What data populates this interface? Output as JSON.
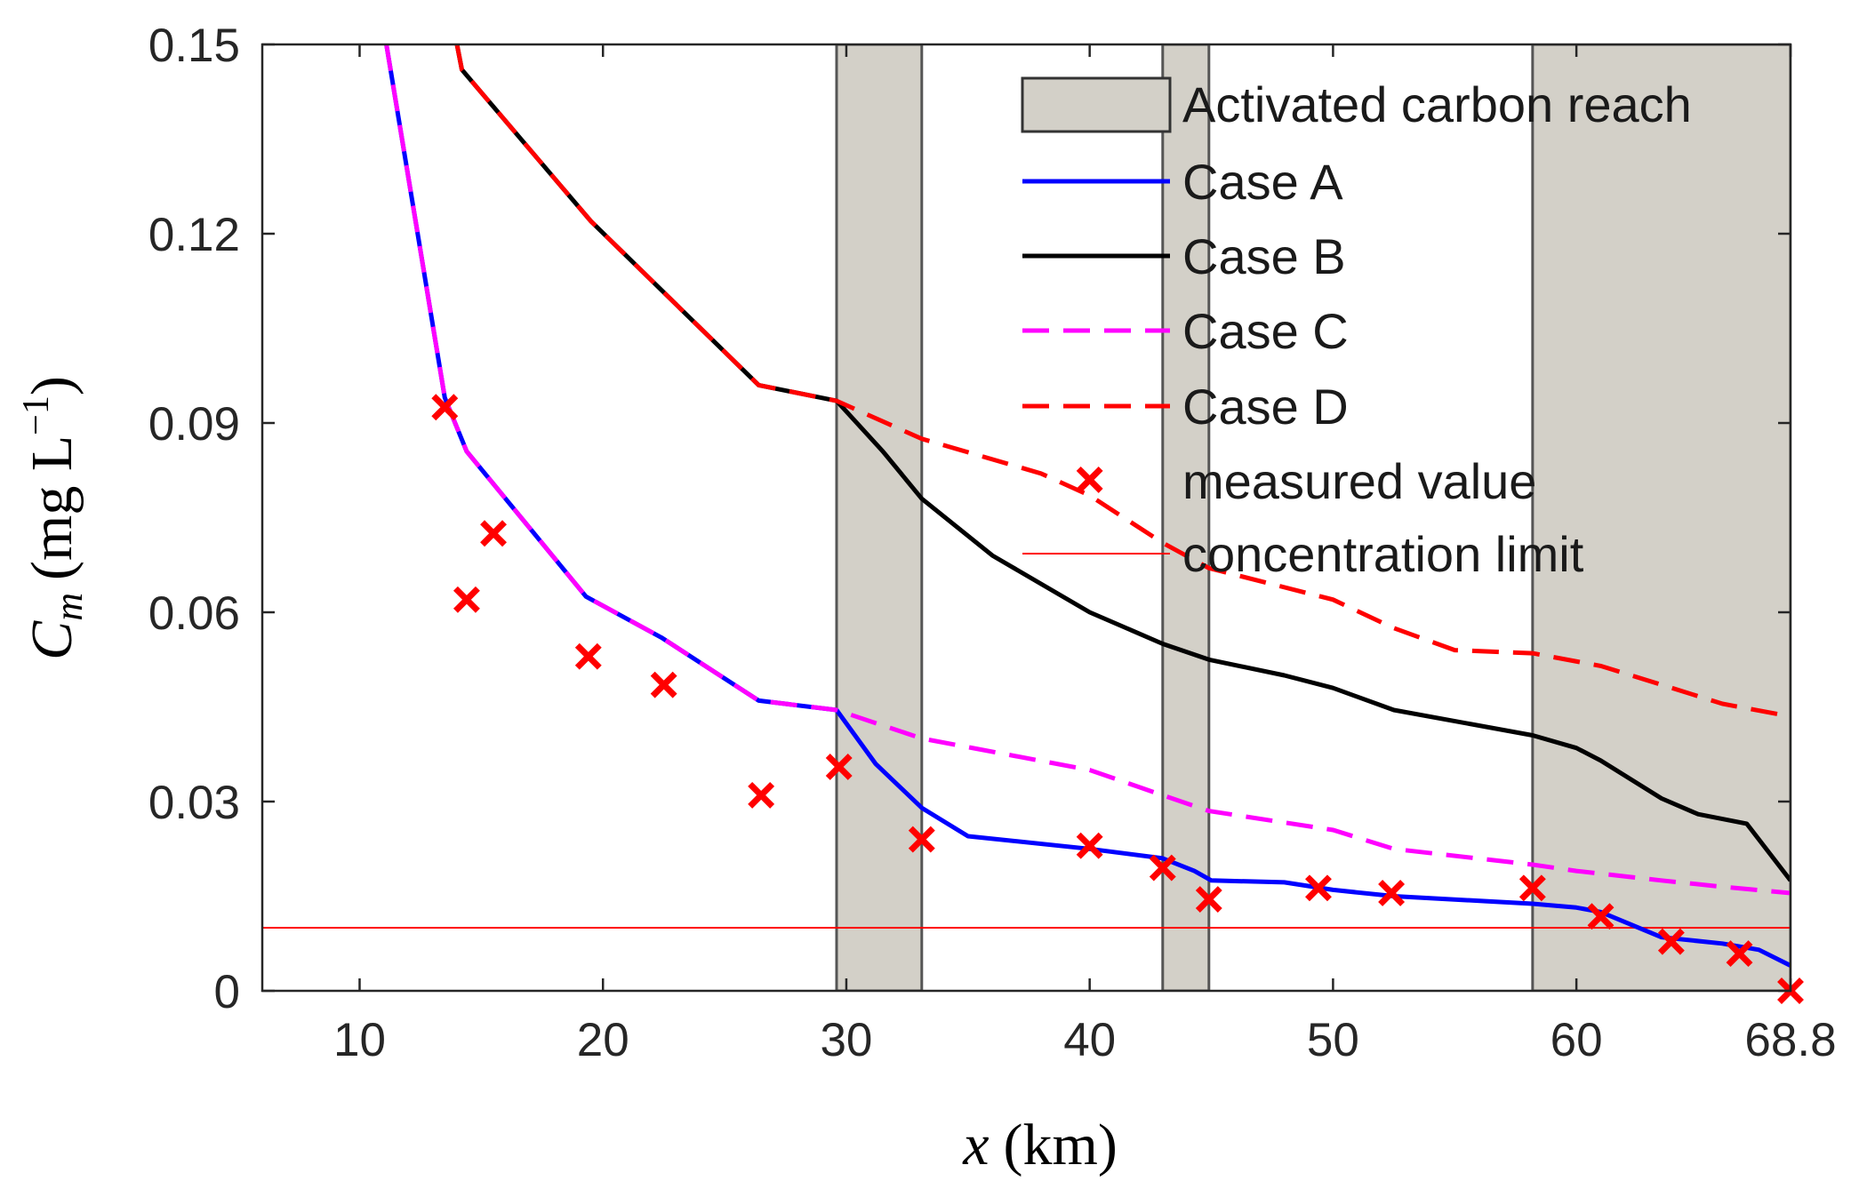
{
  "chart_data": {
    "type": "line",
    "xlabel": {
      "var": "x",
      "unit": "(km)"
    },
    "ylabel": {
      "var": "C",
      "sub": "m",
      "unit": "(mg L",
      "sup": "−1",
      "close": ")"
    },
    "xlim": [
      6,
      68.8
    ],
    "ylim": [
      0,
      0.15
    ],
    "x_ticks": [
      10,
      20,
      30,
      40,
      50,
      60,
      68.8
    ],
    "x_tick_labels": [
      "10",
      "20",
      "30",
      "40",
      "50",
      "60",
      "68.8"
    ],
    "y_ticks": [
      0,
      0.03,
      0.06,
      0.09,
      0.12,
      0.15
    ],
    "y_tick_labels": [
      "0",
      "0.03",
      "0.06",
      "0.09",
      "0.12",
      "0.15"
    ],
    "grid": false,
    "legend_position": "top-right",
    "activated_carbon_reaches": [
      [
        29.6,
        33.1
      ],
      [
        43.0,
        44.9
      ],
      [
        58.2,
        68.8
      ]
    ],
    "concentration_limit": 0.01,
    "series": [
      {
        "name": "Case A",
        "color": "#0000ff",
        "style": "solid",
        "x": [
          11.1,
          13.5,
          14.4,
          19.3,
          22.4,
          26.4,
          29.6,
          31.2,
          33.1,
          35.0,
          40.0,
          43.0,
          44.3,
          45.0,
          48.0,
          50.0,
          52.5,
          58.2,
          60.0,
          61.0,
          63.5,
          66.0,
          67.5,
          68.8
        ],
        "y": [
          0.15,
          0.094,
          0.0855,
          0.0625,
          0.056,
          0.046,
          0.0445,
          0.036,
          0.029,
          0.0245,
          0.0225,
          0.021,
          0.019,
          0.0175,
          0.0172,
          0.016,
          0.015,
          0.0138,
          0.0132,
          0.0125,
          0.0085,
          0.0075,
          0.0065,
          0.004
        ]
      },
      {
        "name": "Case B",
        "color": "#000000",
        "style": "solid",
        "x": [
          14.0,
          14.2,
          19.5,
          26.4,
          29.6,
          31.5,
          33.1,
          36.0,
          40.0,
          43.0,
          44.9,
          48.0,
          50.0,
          52.5,
          58.2,
          60.0,
          61.0,
          63.5,
          65.0,
          67.0,
          68.8
        ],
        "y": [
          0.15,
          0.146,
          0.122,
          0.096,
          0.0935,
          0.0855,
          0.078,
          0.069,
          0.06,
          0.055,
          0.0525,
          0.05,
          0.048,
          0.0445,
          0.0405,
          0.0385,
          0.0365,
          0.0305,
          0.028,
          0.0265,
          0.0175
        ]
      },
      {
        "name": "Case C",
        "color": "#ff00ff",
        "style": "dashed",
        "x": [
          11.1,
          13.5,
          14.4,
          19.3,
          22.4,
          26.4,
          29.6,
          33.1,
          40.0,
          43.0,
          44.9,
          50.0,
          52.5,
          58.2,
          60.0,
          63.5,
          66.0,
          68.8
        ],
        "y": [
          0.15,
          0.094,
          0.0855,
          0.0625,
          0.056,
          0.046,
          0.0445,
          0.04,
          0.035,
          0.031,
          0.0285,
          0.0255,
          0.0225,
          0.02,
          0.019,
          0.0175,
          0.0165,
          0.0155
        ]
      },
      {
        "name": "Case D",
        "color": "#ff0000",
        "style": "dashed",
        "x": [
          14.0,
          14.2,
          19.5,
          26.4,
          29.6,
          33.1,
          38.0,
          40.0,
          43.0,
          44.9,
          50.0,
          52.5,
          55.0,
          58.2,
          61.0,
          63.5,
          66.0,
          68.8
        ],
        "y": [
          0.15,
          0.146,
          0.122,
          0.096,
          0.0935,
          0.0875,
          0.082,
          0.0785,
          0.071,
          0.067,
          0.062,
          0.0575,
          0.054,
          0.0535,
          0.0515,
          0.0485,
          0.0455,
          0.0435
        ]
      },
      {
        "name": "measured value",
        "color": "#ff0000",
        "style": "marker-x",
        "x": [
          13.5,
          14.4,
          15.5,
          19.4,
          22.5,
          26.5,
          29.7,
          33.1,
          40.0,
          40.0,
          43.0,
          44.9,
          49.4,
          52.4,
          58.2,
          61.0,
          63.9,
          66.7,
          68.8
        ],
        "y": [
          0.0925,
          0.062,
          0.0725,
          0.053,
          0.0485,
          0.031,
          0.0355,
          0.024,
          0.081,
          0.023,
          0.0195,
          0.0145,
          0.0163,
          0.0155,
          0.0163,
          0.0118,
          0.0078,
          0.0059,
          0.0
        ]
      },
      {
        "name": "concentration limit",
        "color": "#ff0000",
        "style": "solid-thin",
        "x": [
          6,
          68.8
        ],
        "y": [
          0.01,
          0.01
        ]
      }
    ],
    "legend": [
      {
        "label": "Activated carbon reach",
        "kind": "patch"
      },
      {
        "label": "Case A",
        "kind": "line",
        "series": 0
      },
      {
        "label": "Case B",
        "kind": "line",
        "series": 1
      },
      {
        "label": "Case C",
        "kind": "line",
        "series": 2
      },
      {
        "label": "Case D",
        "kind": "line",
        "series": 3
      },
      {
        "label": "measured value",
        "kind": "marker",
        "series": 4
      },
      {
        "label": "concentration limit",
        "kind": "line",
        "series": 5
      }
    ],
    "reach_fill": "#d3d0c8",
    "reach_edge": "#555555"
  }
}
